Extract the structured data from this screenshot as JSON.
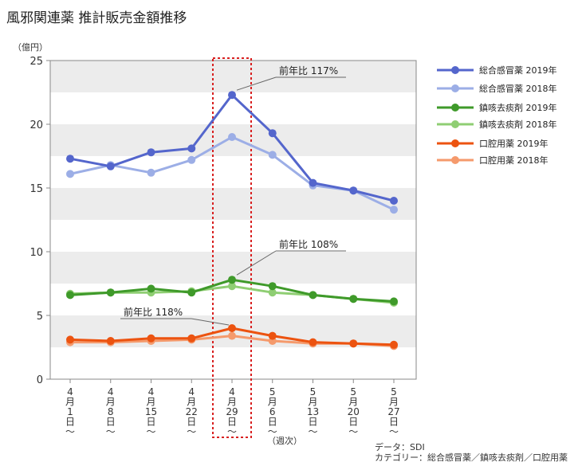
{
  "title": "風邪関連薬 推計販売金額推移",
  "source": {
    "line1": "データ：SDI",
    "line2": "カテゴリー：総合感冒薬／鎮咳去痰剤／口腔用薬"
  },
  "chart_data": {
    "type": "line",
    "y_unit": "（億円）",
    "x_unit": "（週次）",
    "ylim": [
      0,
      25
    ],
    "yticks": [
      "0",
      "5",
      "10",
      "15",
      "20",
      "25"
    ],
    "categories": [
      [
        "4",
        "月",
        "1",
        "日",
        "〜"
      ],
      [
        "4",
        "月",
        "8",
        "日",
        "〜"
      ],
      [
        "4",
        "月",
        "15",
        "日",
        "〜"
      ],
      [
        "4",
        "月",
        "22",
        "日",
        "〜"
      ],
      [
        "4",
        "月",
        "29",
        "日",
        "〜"
      ],
      [
        "5",
        "月",
        "6",
        "日",
        "〜"
      ],
      [
        "5",
        "月",
        "13",
        "日",
        "〜"
      ],
      [
        "5",
        "月",
        "20",
        "日",
        "〜"
      ],
      [
        "5",
        "月",
        "27",
        "日",
        "〜"
      ]
    ],
    "grid": "alternating horizontal bands",
    "legend": "right",
    "highlight_index": 4,
    "series": [
      {
        "name": "総合感冒薬 2019年",
        "color": "#5466cc",
        "values": [
          17.3,
          16.7,
          17.8,
          18.1,
          22.3,
          19.3,
          15.4,
          14.8,
          14.0
        ]
      },
      {
        "name": "総合感冒薬 2018年",
        "color": "#9caee6",
        "values": [
          16.1,
          16.8,
          16.2,
          17.2,
          19.0,
          17.6,
          15.2,
          14.8,
          13.3
        ]
      },
      {
        "name": "鎮咳去痰剤 2019年",
        "color": "#3f9a2a",
        "values": [
          6.6,
          6.8,
          7.1,
          6.8,
          7.8,
          7.3,
          6.6,
          6.3,
          6.1
        ]
      },
      {
        "name": "鎮咳去痰剤 2018年",
        "color": "#8fce73",
        "values": [
          6.7,
          6.8,
          6.8,
          6.9,
          7.3,
          6.8,
          6.6,
          6.3,
          6.0
        ]
      },
      {
        "name": "口腔用薬 2019年",
        "color": "#ec5310",
        "values": [
          3.1,
          3.0,
          3.2,
          3.2,
          4.0,
          3.4,
          2.9,
          2.8,
          2.7
        ]
      },
      {
        "name": "口腔用薬 2018年",
        "color": "#f59a6c",
        "values": [
          2.9,
          2.9,
          3.0,
          3.1,
          3.4,
          3.0,
          2.8,
          2.8,
          2.6
        ]
      }
    ],
    "annotations": [
      {
        "text": "前年比 117%",
        "series_index": 0,
        "point_index": 4
      },
      {
        "text": "前年比 108%",
        "series_index": 2,
        "point_index": 4
      },
      {
        "text": "前年比 118%",
        "series_index": 4,
        "point_index": 4
      }
    ]
  }
}
